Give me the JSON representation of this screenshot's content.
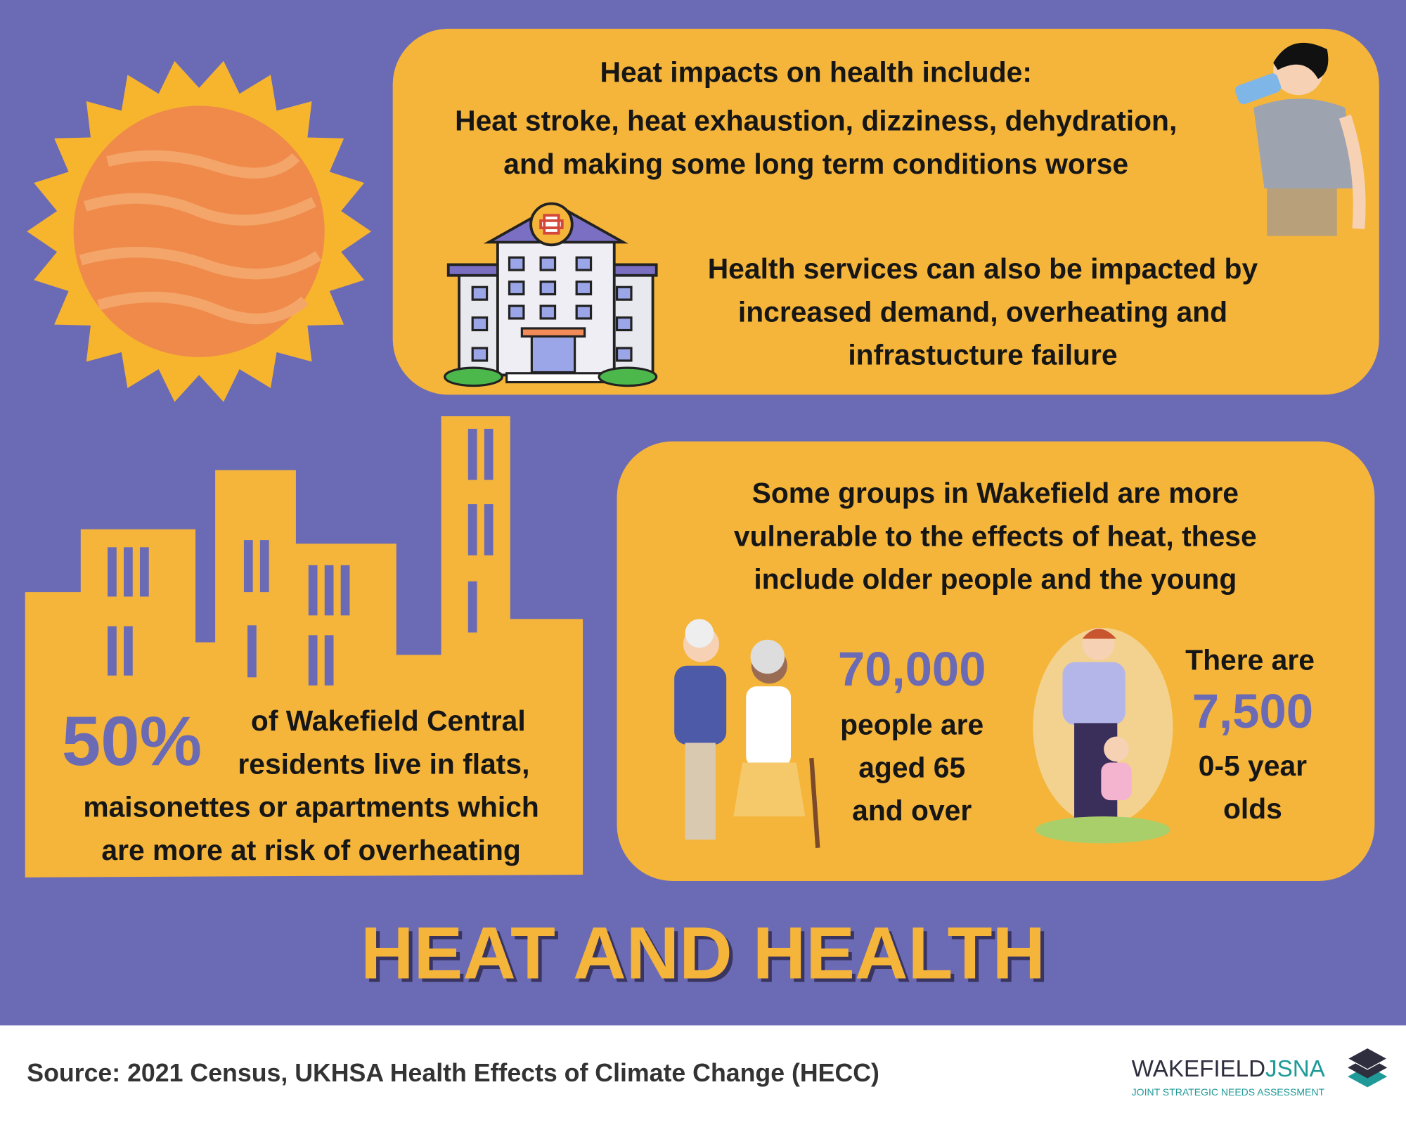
{
  "health_impacts": {
    "heading": "Heat impacts on health include:",
    "lines": [
      "Heat stroke, heat exhaustion, dizziness, dehydration,",
      "and making some long term conditions worse"
    ]
  },
  "services": {
    "lines": [
      "Health services can also be impacted by",
      "increased demand, overheating and",
      "infrastucture failure"
    ]
  },
  "flats": {
    "figure": "50%",
    "lines": [
      "of Wakefield Central",
      "residents live in flats,",
      "maisonettes or apartments which",
      "are more at risk of overheating"
    ]
  },
  "vulnerable": {
    "lines": [
      "Some groups in Wakefield are more",
      "vulnerable to the effects of heat, these",
      "include older people and the young"
    ]
  },
  "older": {
    "figure": "70,000",
    "lines": [
      "people are",
      "aged 65",
      "and over"
    ]
  },
  "young": {
    "intro": "There are",
    "figure": "7,500",
    "lines": [
      "0-5 year",
      "olds"
    ]
  },
  "title": "HEAT AND HEALTH",
  "footer": {
    "source": "Source: 2021 Census, UKHSA Health Effects of Climate Change (HECC)",
    "logo": {
      "name": "WAKEFIELD",
      "suffix": "JSNA",
      "tagline": "JOINT STRATEGIC NEEDS ASSESSMENT"
    }
  }
}
